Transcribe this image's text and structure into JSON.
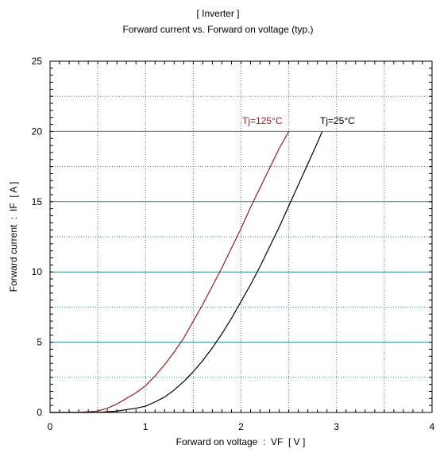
{
  "chart_data": {
    "type": "line",
    "title": "[ Inverter ]",
    "subtitle": "Forward current  vs.  Forward on voltage  (typ.)",
    "xlabel": "Forward on voltage  :  VF  [ V ]",
    "ylabel": "Forward current  :  IF  [ A ]",
    "xlim": [
      0,
      4
    ],
    "ylim": [
      0,
      25
    ],
    "xticks": [
      "0",
      "1",
      "2",
      "3",
      "4"
    ],
    "yticks": [
      "0",
      "5",
      "10",
      "15",
      "20",
      "25"
    ],
    "grid": true,
    "colors": {
      "grid": "#2e8b8b",
      "Tj=125°C": "#9b1b1b",
      "Tj=25°C": "#000000"
    },
    "series": [
      {
        "name": "Tj=125°C",
        "x": [
          0.0,
          0.3,
          0.5,
          0.6,
          0.7,
          0.8,
          0.9,
          1.0,
          1.1,
          1.2,
          1.3,
          1.4,
          1.5,
          1.6,
          1.7,
          1.8,
          1.9,
          2.0,
          2.1,
          2.2,
          2.3,
          2.4,
          2.5
        ],
        "y": [
          0.0,
          0.0,
          0.1,
          0.3,
          0.6,
          1.0,
          1.4,
          1.9,
          2.6,
          3.4,
          4.3,
          5.3,
          6.5,
          7.7,
          9.0,
          10.3,
          11.7,
          13.1,
          14.6,
          16.0,
          17.4,
          18.8,
          20.0
        ]
      },
      {
        "name": "Tj=25°C",
        "x": [
          0.0,
          0.5,
          0.6,
          0.7,
          0.8,
          0.9,
          1.0,
          1.1,
          1.2,
          1.3,
          1.4,
          1.5,
          1.6,
          1.7,
          1.8,
          1.9,
          2.0,
          2.1,
          2.2,
          2.3,
          2.4,
          2.5,
          2.6,
          2.7,
          2.8,
          2.85
        ],
        "y": [
          0.0,
          0.0,
          0.05,
          0.1,
          0.2,
          0.3,
          0.45,
          0.75,
          1.1,
          1.6,
          2.2,
          2.9,
          3.7,
          4.6,
          5.6,
          6.7,
          7.9,
          9.1,
          10.4,
          11.8,
          13.2,
          14.7,
          16.2,
          17.7,
          19.2,
          20.0
        ]
      }
    ],
    "annotations": [
      {
        "text": "Tj=125°C",
        "series": "Tj=125°C"
      },
      {
        "text": "Tj=25°C",
        "series": "Tj=25°C"
      }
    ]
  }
}
